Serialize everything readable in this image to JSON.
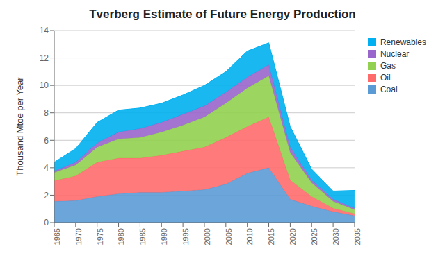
{
  "chart_data": {
    "type": "area",
    "title": "Tverberg Estimate of Future Energy Production",
    "y_label": "Thousand Mtoe per Year",
    "x": [
      1965,
      1970,
      1975,
      1980,
      1985,
      1990,
      1995,
      2000,
      2005,
      2010,
      2015,
      2020,
      2025,
      2030,
      2035
    ],
    "series": [
      {
        "name": "Coal",
        "color": "#5B9BD5",
        "values": [
          1.55,
          1.6,
          1.9,
          2.1,
          2.2,
          2.2,
          2.3,
          2.4,
          2.8,
          3.6,
          4.0,
          1.7,
          1.2,
          0.8,
          0.5
        ]
      },
      {
        "name": "Oil",
        "color": "#FF6B6B",
        "values": [
          1.5,
          1.8,
          2.5,
          2.6,
          2.5,
          2.7,
          2.9,
          3.1,
          3.4,
          3.4,
          3.7,
          1.4,
          0.7,
          0.25,
          0.15
        ]
      },
      {
        "name": "Gas",
        "color": "#92D050",
        "values": [
          0.6,
          0.8,
          1.1,
          1.4,
          1.5,
          1.7,
          1.9,
          2.2,
          2.5,
          2.8,
          3.0,
          2.0,
          1.0,
          0.5,
          0.3
        ]
      },
      {
        "name": "Nuclear",
        "color": "#9966CC",
        "values": [
          0.1,
          0.2,
          0.3,
          0.5,
          0.65,
          0.7,
          0.8,
          0.8,
          0.8,
          0.8,
          0.8,
          0.4,
          0.2,
          0.15,
          0.1
        ]
      },
      {
        "name": "Renewables",
        "color": "#00B0F0",
        "values": [
          0.65,
          1.0,
          1.5,
          1.6,
          1.5,
          1.4,
          1.4,
          1.5,
          1.5,
          1.9,
          1.6,
          1.5,
          0.8,
          0.6,
          1.3
        ]
      }
    ],
    "xlim": [
      1965,
      2035
    ],
    "xticks": [
      1965,
      1970,
      1975,
      1980,
      1985,
      1990,
      1995,
      2000,
      2005,
      2010,
      2015,
      2020,
      2025,
      2030,
      2035
    ],
    "ylim": [
      0,
      14
    ],
    "yticks": [
      0,
      2,
      4,
      6,
      8,
      10,
      12,
      14
    ],
    "stacked": true,
    "grid": true,
    "legend": "upper right"
  }
}
